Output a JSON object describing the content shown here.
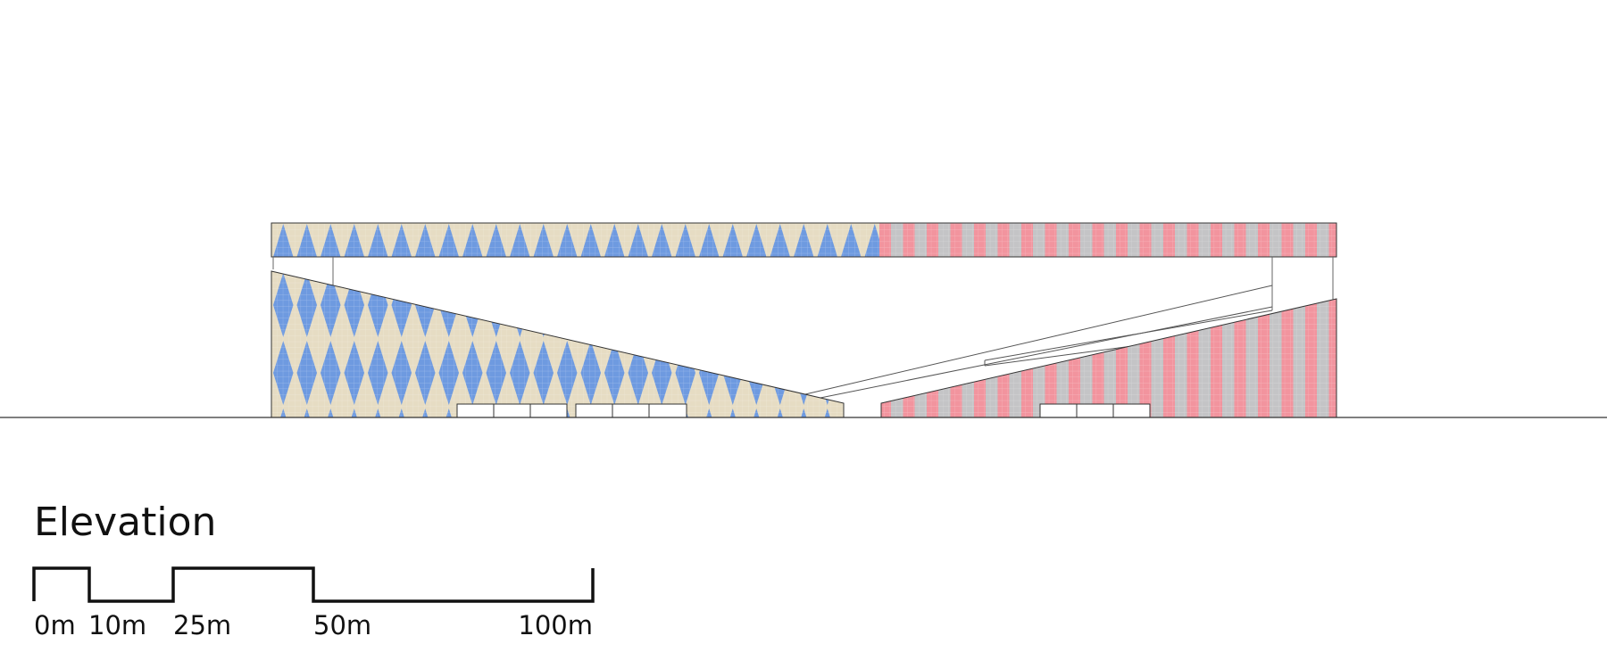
{
  "title": "Elevation",
  "scale_bar": {
    "labels": [
      "0m",
      "10m",
      "25m",
      "50m",
      "100m"
    ]
  },
  "colors": {
    "beige": "#e6dcc3",
    "blue": "#6e9ae0",
    "pink": "#f2949e",
    "grey": "#c4c4c6",
    "line": "#222222"
  }
}
